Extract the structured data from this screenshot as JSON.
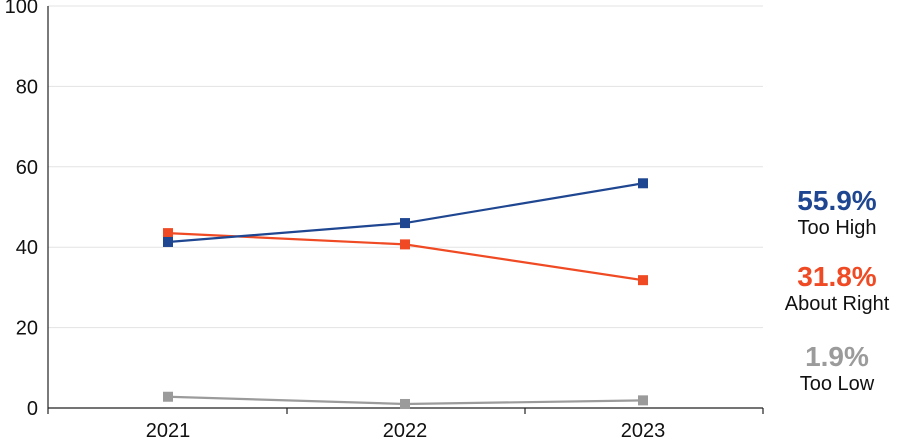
{
  "chart_data": {
    "type": "line",
    "categories": [
      "2021",
      "2022",
      "2023"
    ],
    "ylim": [
      0,
      100
    ],
    "yticks": [
      0,
      20,
      40,
      60,
      80,
      100
    ],
    "grid": true,
    "legend_placement": "right",
    "series": [
      {
        "name": "Too High",
        "color": "#1f4690",
        "values": [
          41.3,
          46.0,
          55.9
        ],
        "end_label": "55.9%"
      },
      {
        "name": "About Right",
        "color": "#ef4a23",
        "values": [
          43.5,
          40.7,
          31.8
        ],
        "end_label": "31.8%"
      },
      {
        "name": "Too Low",
        "color": "#9b9b9b",
        "values": [
          2.8,
          1.0,
          1.9
        ],
        "end_label": "1.9%"
      }
    ]
  }
}
